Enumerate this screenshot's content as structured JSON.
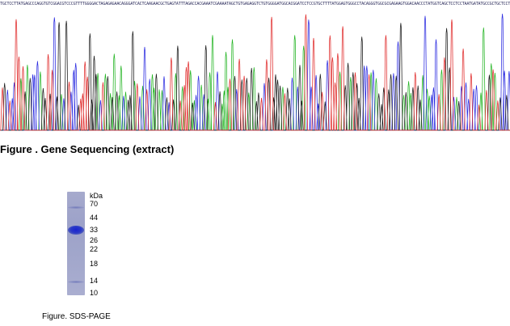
{
  "sequencing": {
    "caption": "Figure . Gene Sequencing (extract)",
    "base_colors": {
      "A": "#22b422",
      "C": "#2a2ae0",
      "G": "#1a1a1a",
      "T": "#e02a2a"
    }
  },
  "sds_page": {
    "caption": "Figure. SDS-PAGE",
    "unit": "kDa",
    "markers": [
      "70",
      "44",
      "33",
      "26",
      "22",
      "18",
      "14",
      "10"
    ],
    "lane_color": "#a3a8cc",
    "band_color": "#2332c8"
  }
}
